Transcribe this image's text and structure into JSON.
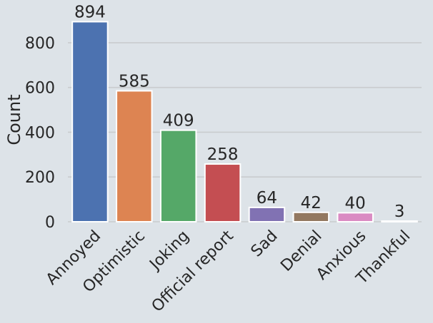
{
  "chart_data": {
    "type": "bar",
    "categories": [
      "Annoyed",
      "Optimistic",
      "Joking",
      "Official report",
      "Sad",
      "Denial",
      "Anxious",
      "Thankful"
    ],
    "values": [
      894,
      585,
      409,
      258,
      64,
      42,
      40,
      3
    ],
    "data_labels": [
      "894",
      "585",
      "409",
      "258",
      "64",
      "42",
      "40",
      "3"
    ],
    "ylabel": "Count",
    "yticks": [
      0,
      200,
      400,
      600,
      800
    ],
    "ylim": [
      0,
      940
    ],
    "grid": "horizontal",
    "legend": "none",
    "colors": [
      "#4c72b0",
      "#dd8452",
      "#55a868",
      "#c44e52",
      "#8172b3",
      "#937860",
      "#da8bc3",
      "#8c8c8c"
    ],
    "background": "#dde3e8",
    "grid_color": "#c9ccce"
  }
}
